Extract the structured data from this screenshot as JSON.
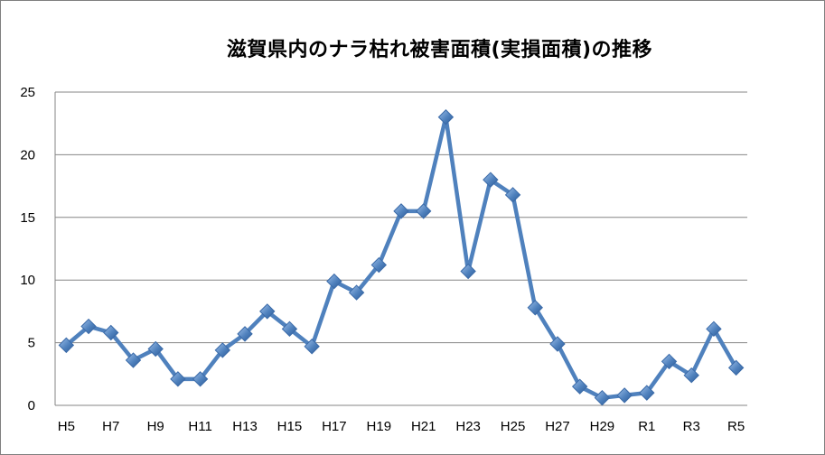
{
  "chart_data": {
    "type": "line",
    "title": "滋賀県内のナラ枯れ被害面積(実損面積)の推移",
    "xlabel": "",
    "ylabel": "",
    "ylim": [
      0,
      25
    ],
    "yticks": [
      "0",
      "5",
      "10",
      "15",
      "20",
      "25"
    ],
    "x": [
      "H5",
      "H6",
      "H7",
      "H8",
      "H9",
      "H10",
      "H11",
      "H12",
      "H13",
      "H14",
      "H15",
      "H16",
      "H17",
      "H18",
      "H19",
      "H20",
      "H21",
      "H22",
      "H23",
      "H24",
      "H25",
      "H26",
      "H27",
      "H28",
      "H29",
      "H30",
      "R1",
      "R2",
      "R3",
      "R4",
      "R5"
    ],
    "xtick_labels": [
      "H5",
      "H7",
      "H9",
      "H11",
      "H13",
      "H15",
      "H17",
      "H19",
      "H21",
      "H23",
      "H25",
      "H27",
      "H29",
      "R1",
      "R3",
      "R5"
    ],
    "series": [
      {
        "values": [
          4.8,
          6.3,
          5.8,
          3.6,
          4.5,
          2.1,
          2.1,
          4.4,
          5.7,
          7.5,
          6.1,
          4.7,
          9.9,
          9.0,
          11.2,
          15.5,
          15.5,
          23.0,
          10.7,
          18.0,
          16.8,
          7.8,
          4.9,
          1.5,
          0.6,
          0.8,
          1.0,
          3.5,
          2.4,
          6.1,
          3.0
        ]
      }
    ],
    "grid": true,
    "legend": "none",
    "colors": {
      "line": "#4f81bd",
      "marker": "#4f81bd",
      "grid": "#868686"
    }
  }
}
